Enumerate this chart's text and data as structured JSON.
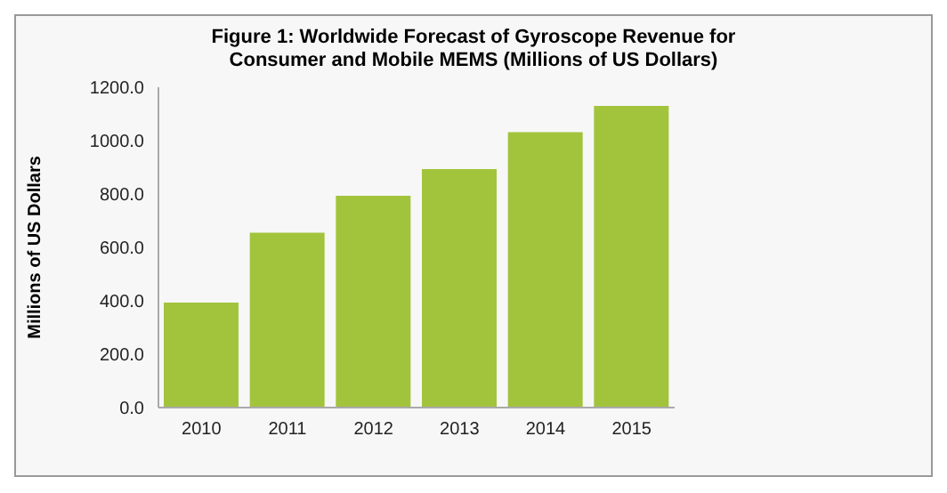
{
  "chart_data": {
    "type": "bar",
    "title": "Figure 1: Worldwide Forecast of Gyroscope Revenue for Consumer and Mobile MEMS (Millions of US Dollars)",
    "ylabel": "Millions of US Dollars",
    "categories": [
      "2010",
      "2011",
      "2012",
      "2013",
      "2014",
      "2015"
    ],
    "values": [
      393,
      655,
      793,
      893,
      1032,
      1130
    ],
    "color": "#a2c43c",
    "ylim": [
      0,
      1200
    ],
    "yticks": [
      {
        "value": 0,
        "label": "0.0"
      },
      {
        "value": 200,
        "label": "200.0"
      },
      {
        "value": 400,
        "label": "400.0"
      },
      {
        "value": 600,
        "label": "600.0"
      },
      {
        "value": 800,
        "label": "800.0"
      },
      {
        "value": 1000,
        "label": "1000.0"
      },
      {
        "value": 1200,
        "label": "1200.0"
      }
    ],
    "grid": false,
    "legend": false
  }
}
